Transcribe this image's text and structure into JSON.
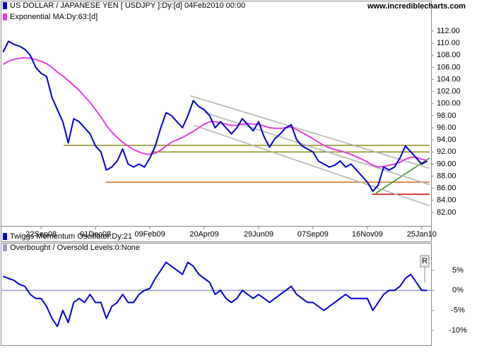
{
  "site": "www.incrediblecharts.com",
  "chart_data": [
    {
      "type": "line",
      "x": [
        "2008-08-04",
        "2008-08-11",
        "2008-08-18",
        "2008-08-25",
        "2008-09-01",
        "2008-09-08",
        "2008-09-15",
        "2008-09-22",
        "2008-09-29",
        "2008-10-06",
        "2008-10-13",
        "2008-10-20",
        "2008-10-27",
        "2008-11-03",
        "2008-11-10",
        "2008-11-17",
        "2008-11-24",
        "2008-12-01",
        "2008-12-08",
        "2008-12-15",
        "2008-12-22",
        "2008-12-29",
        "2009-01-05",
        "2009-01-12",
        "2009-01-19",
        "2009-01-26",
        "2009-02-02",
        "2009-02-09",
        "2009-02-16",
        "2009-02-23",
        "2009-03-02",
        "2009-03-09",
        "2009-03-16",
        "2009-03-23",
        "2009-03-30",
        "2009-04-06",
        "2009-04-13",
        "2009-04-20",
        "2009-04-27",
        "2009-05-04",
        "2009-05-11",
        "2009-05-18",
        "2009-05-25",
        "2009-06-01",
        "2009-06-08",
        "2009-06-15",
        "2009-06-22",
        "2009-06-29",
        "2009-07-06",
        "2009-07-13",
        "2009-07-20",
        "2009-07-27",
        "2009-08-03",
        "2009-08-10",
        "2009-08-17",
        "2009-08-24",
        "2009-08-31",
        "2009-09-07",
        "2009-09-14",
        "2009-09-21",
        "2009-09-28",
        "2009-10-05",
        "2009-10-12",
        "2009-10-19",
        "2009-10-26",
        "2009-11-02",
        "2009-11-09",
        "2009-11-16",
        "2009-11-23",
        "2009-11-30",
        "2009-12-07",
        "2009-12-14",
        "2009-12-21",
        "2009-12-28",
        "2010-01-04",
        "2010-01-11",
        "2010-01-18",
        "2010-01-25",
        "2010-02-01"
      ],
      "series": [
        {
          "name": "US DOLLAR / JAPANESE YEN [ USDJPY ]:Dy:[d]  04Feb2010 00:00",
          "color": "#0000cc",
          "values": [
            108.5,
            110.3,
            109.8,
            109.5,
            109,
            108,
            106,
            105,
            104.5,
            101,
            99,
            97,
            93.5,
            97.5,
            97,
            96,
            95,
            93,
            92,
            89,
            89.5,
            90.5,
            92.5,
            90,
            89.5,
            90,
            89.5,
            91,
            93,
            96,
            98.5,
            98,
            97,
            96,
            98,
            100.5,
            99.5,
            99,
            98,
            96,
            97,
            96,
            95,
            96,
            97.5,
            96.5,
            95.5,
            97,
            94.5,
            92.8,
            94.2,
            95,
            96,
            96.5,
            94,
            93,
            92.5,
            92,
            90.5,
            90,
            89.5,
            89.8,
            90.5,
            89.5,
            90,
            89,
            88,
            87,
            85.5,
            86.5,
            89.5,
            89,
            89.5,
            91,
            93,
            92,
            91,
            90,
            90.5
          ]
        },
        {
          "name": "Exponential MA:Dy:63:[d]",
          "color": "#e040e0",
          "values": [
            106.5,
            107,
            107.3,
            107.5,
            107.6,
            107.5,
            107.3,
            107,
            106.6,
            106,
            105.2,
            104.6,
            103.8,
            103,
            102.2,
            101.2,
            100.2,
            99,
            97.8,
            96.4,
            95.3,
            94.4,
            93.6,
            93,
            92.4,
            92,
            91.7,
            91.6,
            91.8,
            92.3,
            93,
            93.6,
            94,
            94.4,
            94.9,
            95.4,
            96,
            96.6,
            97,
            97,
            96.8,
            96.6,
            96.4,
            96.4,
            96.6,
            96.7,
            96.6,
            96.6,
            96.3,
            96,
            95.9,
            95.9,
            96,
            96.1,
            95.7,
            95.2,
            94.7,
            94.2,
            93.6,
            93.1,
            92.7,
            92.4,
            92.2,
            91.9,
            91.6,
            91.2,
            90.8,
            90.3,
            89.8,
            89.5,
            89.6,
            89.8,
            90,
            90.3,
            90.8,
            91.1,
            91.1,
            90.8,
            90.6
          ]
        }
      ],
      "trend_lines": [
        {
          "color": "#8a8a20",
          "x": [
            "2008-10-21",
            "2010-02-04"
          ],
          "y": [
            93.1,
            93.1
          ]
        },
        {
          "color": "#8a8a20",
          "x": [
            "2009-02-11",
            "2010-02-04"
          ],
          "y": [
            92,
            92
          ]
        },
        {
          "color": "#d2691e",
          "x": [
            "2008-12-14",
            "2010-02-04"
          ],
          "y": [
            87,
            87
          ]
        },
        {
          "color": "#cc0000",
          "x": [
            "2009-11-22",
            "2010-02-04"
          ],
          "y": [
            85,
            85
          ]
        },
        {
          "color": "#228b22",
          "x": [
            "2009-11-27",
            "2010-02-04"
          ],
          "y": [
            85.2,
            91
          ]
        },
        {
          "color": "#b0b0b0",
          "x": [
            "2009-04-02",
            "2010-02-04"
          ],
          "y": [
            101.3,
            89.3
          ]
        },
        {
          "color": "#b0b0b0",
          "x": [
            "2009-04-21",
            "2010-02-04"
          ],
          "y": [
            98.5,
            86.6
          ]
        },
        {
          "color": "#b0b0b0",
          "x": [
            "2009-04-07",
            "2010-02-04"
          ],
          "y": [
            96.4,
            83.1
          ]
        }
      ],
      "xlim": [
        "2008-08-01",
        "2010-02-06"
      ],
      "xticks": [
        {
          "value": "2008-09-22",
          "label": "22Sep08"
        },
        {
          "value": "2008-12-01",
          "label": "01Dec08"
        },
        {
          "value": "2009-02-09",
          "label": "09Feb09"
        },
        {
          "value": "2009-04-20",
          "label": "20Apr09"
        },
        {
          "value": "2009-06-29",
          "label": "29Jun09"
        },
        {
          "value": "2009-09-07",
          "label": "07Sep09"
        },
        {
          "value": "2009-11-16",
          "label": "16Nov09"
        },
        {
          "value": "2010-01-25",
          "label": "25Jan10"
        }
      ],
      "ylim": [
        80,
        114.8
      ],
      "yticks": [
        {
          "value": 82,
          "label": "82.00"
        },
        {
          "value": 84,
          "label": "84.00"
        },
        {
          "value": 86,
          "label": "86.00"
        },
        {
          "value": 88,
          "label": "88.00"
        },
        {
          "value": 90,
          "label": "90.00"
        },
        {
          "value": 92,
          "label": "92.00"
        },
        {
          "value": 94,
          "label": "94.00"
        },
        {
          "value": 96,
          "label": "96.00"
        },
        {
          "value": 98,
          "label": "98.00"
        },
        {
          "value": 100,
          "label": "100.00"
        },
        {
          "value": 102,
          "label": "102.00"
        },
        {
          "value": 104,
          "label": "104.00"
        },
        {
          "value": 106,
          "label": "106.00"
        },
        {
          "value": 108,
          "label": "108.00"
        },
        {
          "value": 110,
          "label": "110.00"
        },
        {
          "value": 112,
          "label": "112.00"
        }
      ]
    },
    {
      "type": "line",
      "series": [
        {
          "name": "Twiggs Momentum Oscillator:Dy:21",
          "color": "#0000cc",
          "values": [
            3.5,
            3,
            2.5,
            1.5,
            1,
            -1,
            -2,
            -2,
            -4,
            -7,
            -9,
            -5,
            -8,
            -3,
            -2,
            -3,
            -1,
            -3,
            -3,
            -7,
            -4,
            -3,
            -1,
            -3,
            -3,
            -1,
            0,
            0.5,
            3,
            5,
            7,
            6,
            5,
            4,
            7,
            6,
            4,
            3,
            2,
            -1,
            0,
            -2,
            -3,
            -2,
            0,
            -1,
            -2,
            -1,
            -2,
            -3,
            -2,
            -1,
            0,
            1,
            -1,
            -2,
            -3,
            -3,
            -4,
            -5,
            -4,
            -3,
            -2,
            -1,
            -2,
            -2,
            -2,
            -2,
            -5,
            -3,
            -1,
            0,
            0,
            1,
            3,
            4,
            2,
            0,
            0
          ]
        }
      ],
      "levels": [
        {
          "name": "Overbought / Oversold Levels:0:None",
          "color": "#9999cc",
          "value": 0
        }
      ],
      "button": "R",
      "ylim": [
        -13.5,
        11.5
      ],
      "yticks": [
        {
          "value": 5,
          "label": "5%"
        },
        {
          "value": 0,
          "label": "0%"
        },
        {
          "value": -5,
          "label": "-5%"
        },
        {
          "value": -10,
          "label": "-10%"
        }
      ]
    }
  ]
}
